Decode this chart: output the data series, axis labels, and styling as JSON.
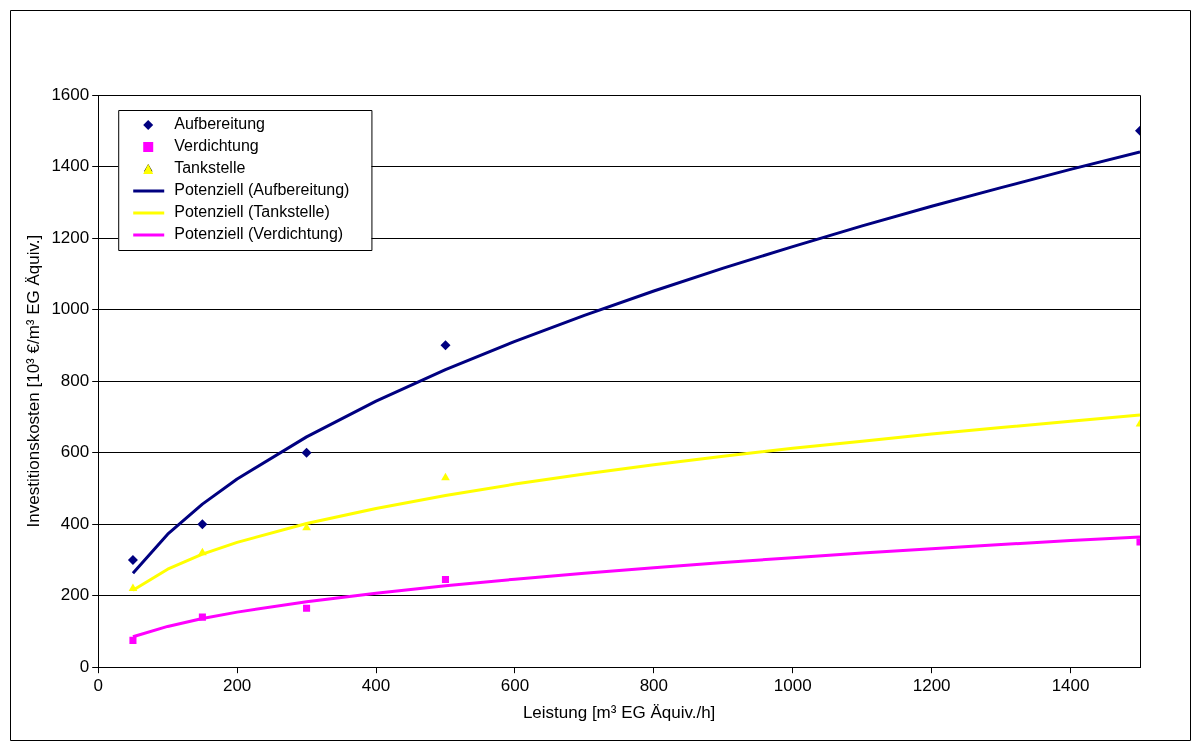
{
  "chart_data": {
    "type": "scatter",
    "xlabel": "Leistung [m³ EG Äquiv./h]",
    "ylabel": "Investitionskosten [10³ €/m³ EG Äquiv.]",
    "xlim": [
      0,
      1500
    ],
    "xticks": [
      0,
      200,
      400,
      600,
      800,
      1000,
      1200,
      1400
    ],
    "ylim": [
      0,
      1600
    ],
    "yticks": [
      0,
      200,
      400,
      600,
      800,
      1000,
      1200,
      1400,
      1600
    ],
    "grid": "y",
    "legend": "top left",
    "series": [
      {
        "name": "Aufbereitung",
        "marker": "diamond",
        "color": "#000080",
        "x": [
          50,
          150,
          300,
          500,
          1500
        ],
        "values": [
          300,
          400,
          600,
          900,
          1500
        ]
      },
      {
        "name": "Verdichtung",
        "marker": "square",
        "color": "#ff00ff",
        "x": [
          50,
          150,
          300,
          500,
          1500
        ],
        "values": [
          75,
          140,
          165,
          245,
          350
        ]
      },
      {
        "name": "Tankstelle",
        "marker": "triangle",
        "color": "#ffff00",
        "x": [
          50,
          150,
          300,
          500,
          1500
        ],
        "values": [
          220,
          320,
          390,
          530,
          680
        ]
      },
      {
        "name": "Potenziell (Aufbereitung)",
        "type": "line",
        "marker": "none",
        "color": "#000080",
        "x": [
          50,
          100,
          150,
          200,
          300,
          400,
          500,
          600,
          700,
          800,
          900,
          1000,
          1100,
          1200,
          1300,
          1400,
          1500
        ],
        "values": [
          263,
          372,
          456,
          526,
          644,
          744,
          832,
          911,
          984,
          1052,
          1116,
          1176,
          1234,
          1289,
          1341,
          1392,
          1441
        ]
      },
      {
        "name": "Potenziell (Tankstelle)",
        "type": "line",
        "marker": "none",
        "color": "#ffff00",
        "x": [
          50,
          100,
          150,
          200,
          300,
          400,
          500,
          600,
          700,
          800,
          900,
          1000,
          1100,
          1200,
          1300,
          1400,
          1500
        ],
        "values": [
          215,
          274,
          316,
          349,
          402,
          444,
          480,
          512,
          540,
          566,
          590,
          612,
          632,
          652,
          670,
          688,
          705
        ]
      },
      {
        "name": "Potenziell (Verdichtung)",
        "type": "line",
        "marker": "none",
        "color": "#ff00ff",
        "x": [
          50,
          100,
          150,
          200,
          300,
          400,
          500,
          600,
          700,
          800,
          900,
          1000,
          1100,
          1200,
          1300,
          1400,
          1500
        ],
        "values": [
          85,
          114,
          136,
          154,
          183,
          207,
          228,
          246,
          263,
          278,
          293,
          306,
          319,
          331,
          343,
          354,
          364
        ]
      }
    ]
  }
}
